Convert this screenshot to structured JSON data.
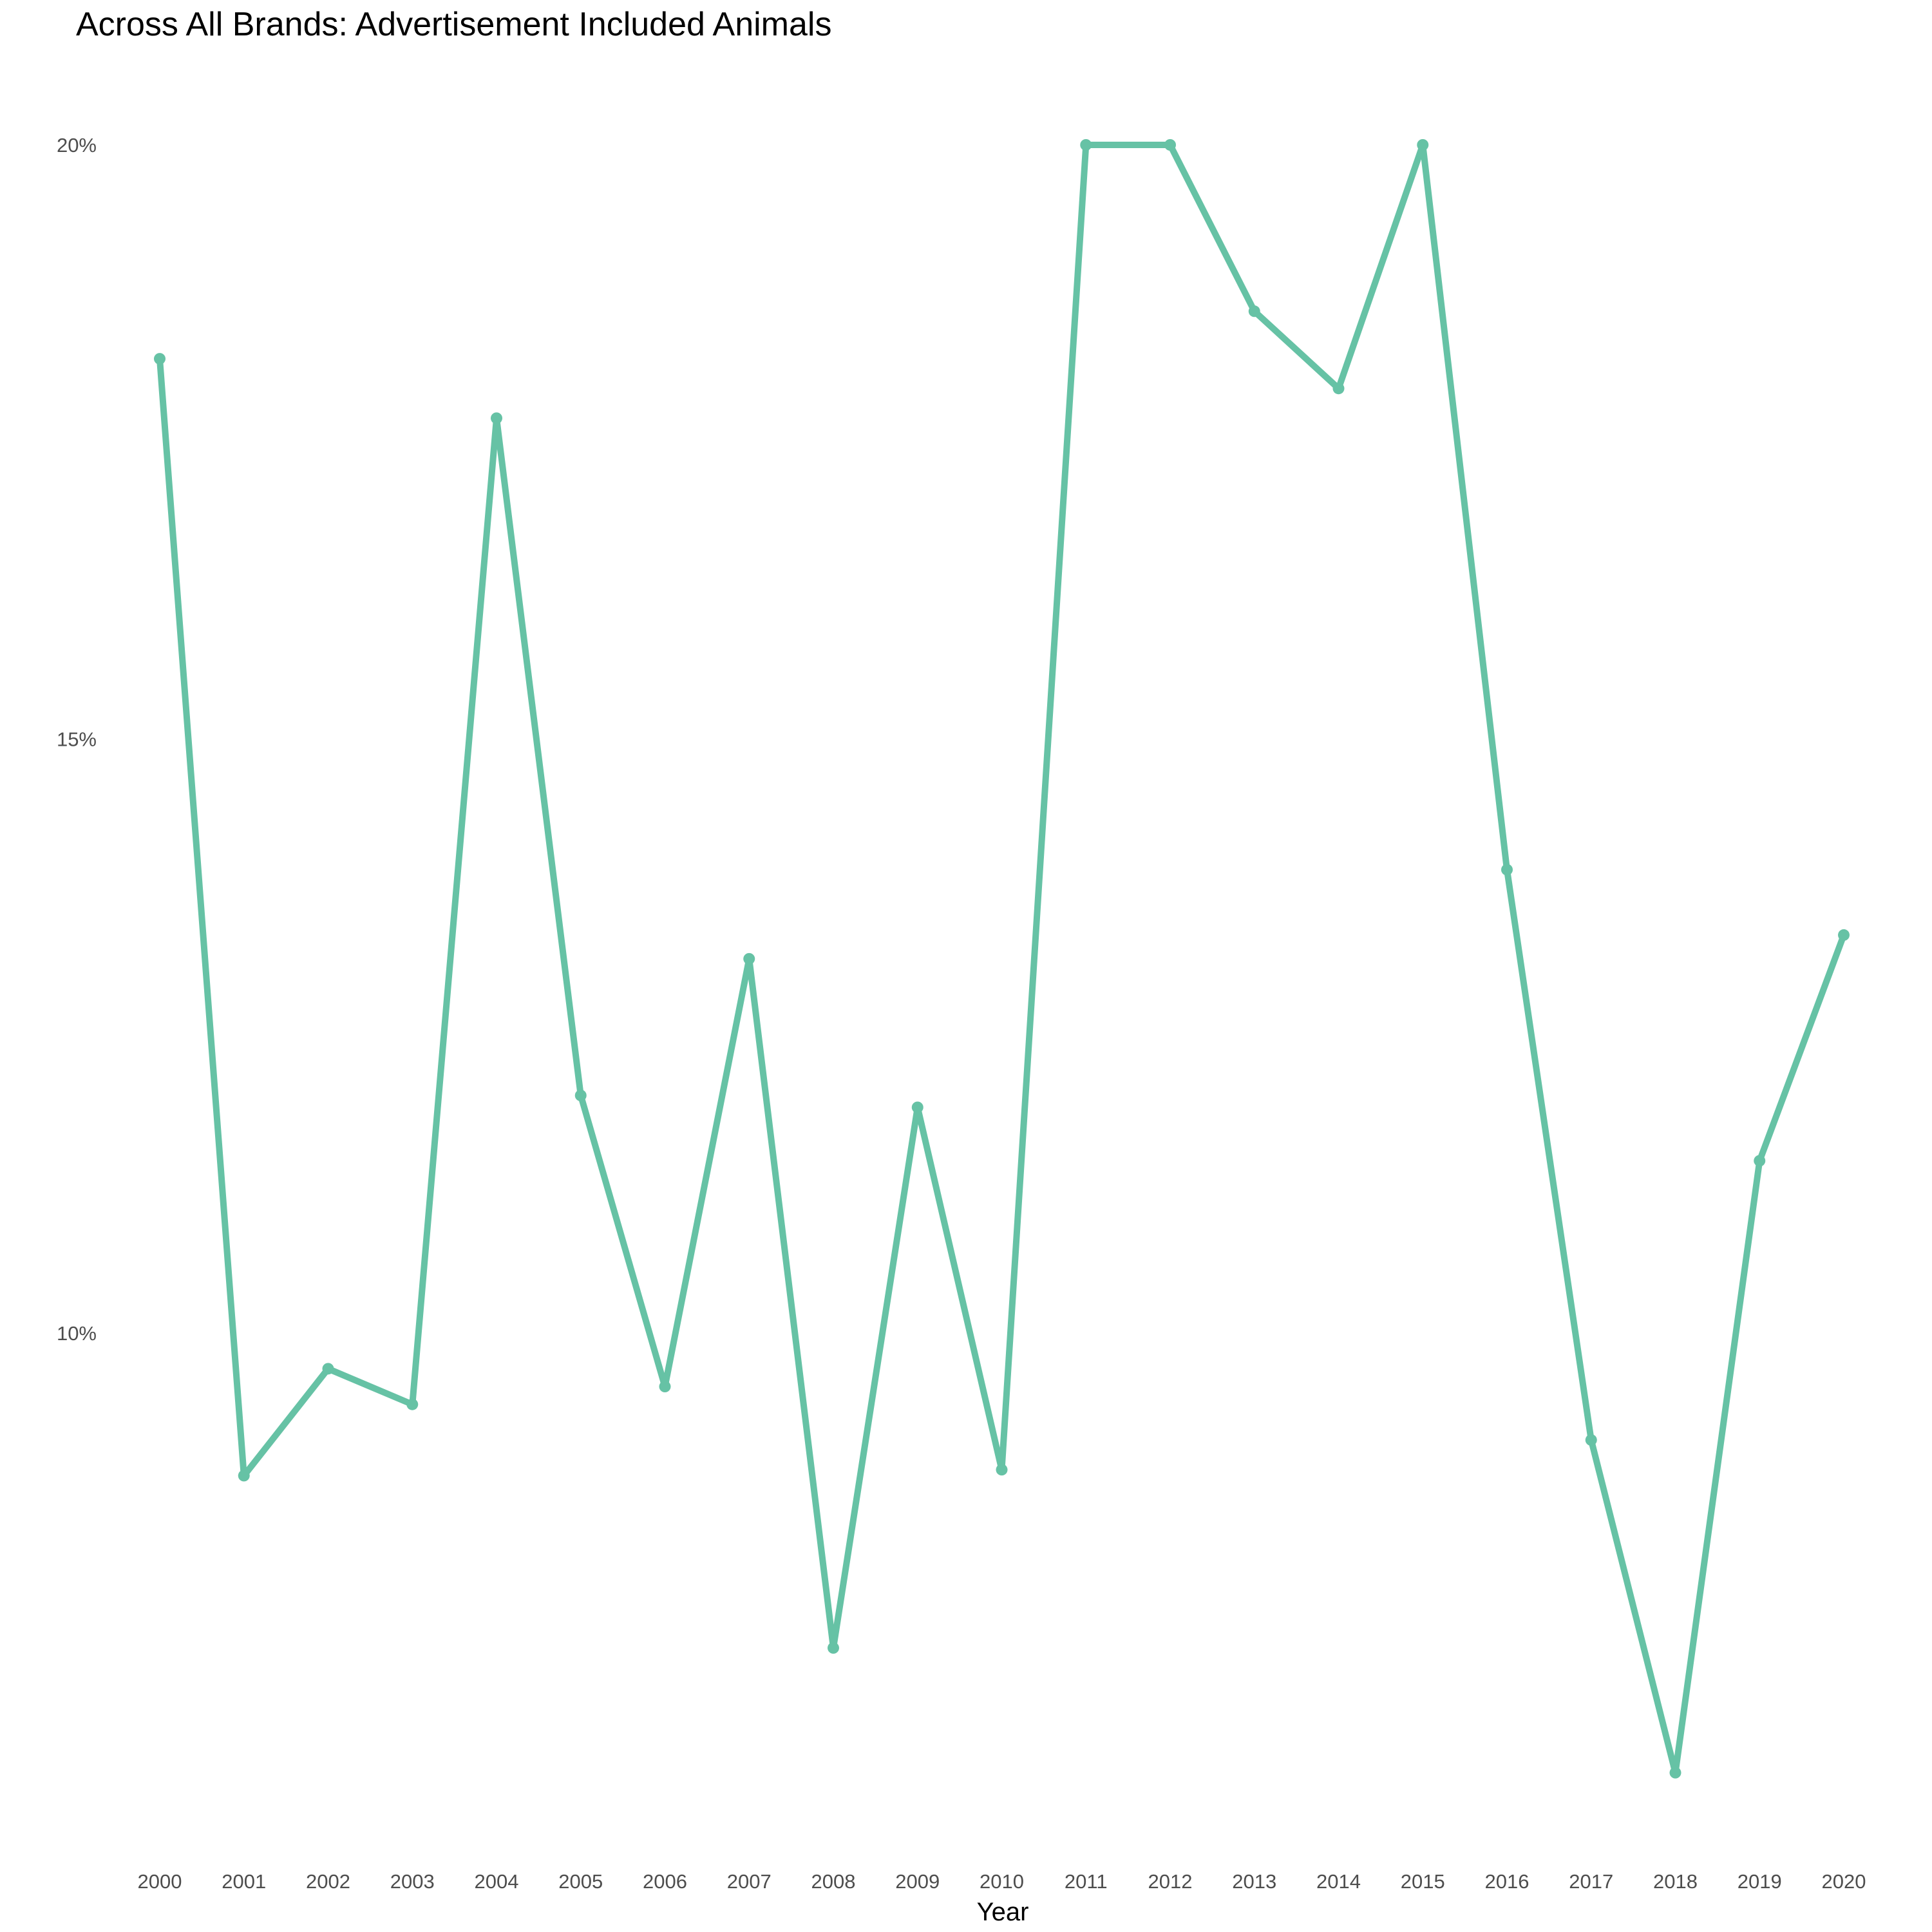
{
  "chart_data": {
    "type": "line",
    "title": "Across All Brands: Advertisement Included Animals",
    "xlabel": "Year",
    "ylabel": "",
    "x": [
      2000,
      2001,
      2002,
      2003,
      2004,
      2005,
      2006,
      2007,
      2008,
      2009,
      2010,
      2011,
      2012,
      2013,
      2014,
      2015,
      2016,
      2017,
      2018,
      2019,
      2020
    ],
    "series": [
      {
        "values": [
          18.2,
          8.8,
          9.7,
          9.4,
          17.7,
          12.0,
          9.55,
          13.15,
          7.35,
          11.9,
          8.85,
          20.0,
          20.0,
          18.6,
          17.95,
          20.0,
          13.9,
          9.1,
          6.3,
          11.45,
          13.35
        ]
      }
    ],
    "yticks": [
      10,
      15,
      20
    ],
    "ytick_labels": [
      "10%",
      "15%",
      "20%"
    ],
    "ylim": [
      5.5,
      20.6
    ],
    "grid": false,
    "line_color": "#66c2a5"
  }
}
